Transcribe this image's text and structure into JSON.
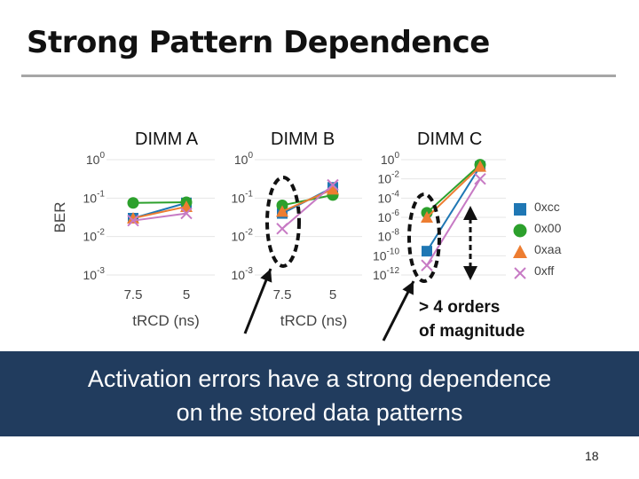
{
  "slide": {
    "title": "Strong Pattern Dependence",
    "banner_line1": "Activation errors have a strong dependence",
    "banner_line2": "on the stored data patterns",
    "annotation_line1": "> 4 orders",
    "annotation_line2": "of magnitude",
    "page_number": "18"
  },
  "colors": {
    "0xcc": "#1f77b4",
    "0x00": "#2ca02c",
    "0xaa": "#ed7d31",
    "0xff": "#c77ac4",
    "banner": "#213c5e"
  },
  "legend": [
    {
      "name": "0xcc",
      "marker": "square"
    },
    {
      "name": "0x00",
      "marker": "circle"
    },
    {
      "name": "0xaa",
      "marker": "triangle"
    },
    {
      "name": "0xff",
      "marker": "x"
    }
  ],
  "chart_data": [
    {
      "type": "line",
      "title": "DIMM A",
      "xlabel": "tRCD (ns)",
      "ylabel": "BER",
      "yscale": "log",
      "categories": [
        "7.5",
        "5"
      ],
      "yticks": [
        {
          "exp": 0,
          "label_base": "10",
          "label_exp": "0"
        },
        {
          "exp": -1,
          "label_base": "10",
          "label_exp": "-1"
        },
        {
          "exp": -2,
          "label_base": "10",
          "label_exp": "-2"
        },
        {
          "exp": -3,
          "label_base": "10",
          "label_exp": "-3"
        }
      ],
      "ylim": [
        0.001,
        1
      ],
      "series": [
        {
          "name": "0xcc",
          "values": [
            0.03,
            0.075
          ]
        },
        {
          "name": "0x00",
          "values": [
            0.075,
            0.078
          ]
        },
        {
          "name": "0xaa",
          "values": [
            0.03,
            0.06
          ]
        },
        {
          "name": "0xff",
          "values": [
            0.026,
            0.04
          ]
        }
      ]
    },
    {
      "type": "line",
      "title": "DIMM B",
      "xlabel": "tRCD (ns)",
      "ylabel": "",
      "yscale": "log",
      "categories": [
        "7.5",
        "5"
      ],
      "yticks": [
        {
          "exp": 0,
          "label_base": "10",
          "label_exp": "0"
        },
        {
          "exp": -1,
          "label_base": "10",
          "label_exp": "-1"
        },
        {
          "exp": -2,
          "label_base": "10",
          "label_exp": "-2"
        },
        {
          "exp": -3,
          "label_base": "10",
          "label_exp": "-3"
        }
      ],
      "ylim": [
        0.001,
        1
      ],
      "series": [
        {
          "name": "0xcc",
          "values": [
            0.04,
            0.19
          ]
        },
        {
          "name": "0x00",
          "values": [
            0.065,
            0.12
          ]
        },
        {
          "name": "0xaa",
          "values": [
            0.045,
            0.17
          ]
        },
        {
          "name": "0xff",
          "values": [
            0.016,
            0.22
          ]
        }
      ]
    },
    {
      "type": "line",
      "title": "DIMM C",
      "xlabel": "",
      "ylabel": "",
      "yscale": "log",
      "categories": [
        "",
        ""
      ],
      "yticks": [
        {
          "exp": 0,
          "label_base": "10",
          "label_exp": "0"
        },
        {
          "exp": -2,
          "label_base": "10",
          "label_exp": "-2"
        },
        {
          "exp": -4,
          "label_base": "10",
          "label_exp": "-4"
        },
        {
          "exp": -6,
          "label_base": "10",
          "label_exp": "-6"
        },
        {
          "exp": -8,
          "label_base": "10",
          "label_exp": "-8"
        },
        {
          "exp": -10,
          "label_base": "10",
          "label_exp": "-10"
        },
        {
          "exp": -12,
          "label_base": "10",
          "label_exp": "-12"
        }
      ],
      "ylim": [
        1e-12,
        1
      ],
      "series": [
        {
          "name": "0xcc",
          "values": [
            3e-10,
            0.2
          ]
        },
        {
          "name": "0x00",
          "values": [
            3e-06,
            0.3
          ]
        },
        {
          "name": "0xaa",
          "values": [
            1e-06,
            0.2
          ]
        },
        {
          "name": "0xff",
          "values": [
            1e-11,
            0.01
          ]
        }
      ]
    }
  ]
}
